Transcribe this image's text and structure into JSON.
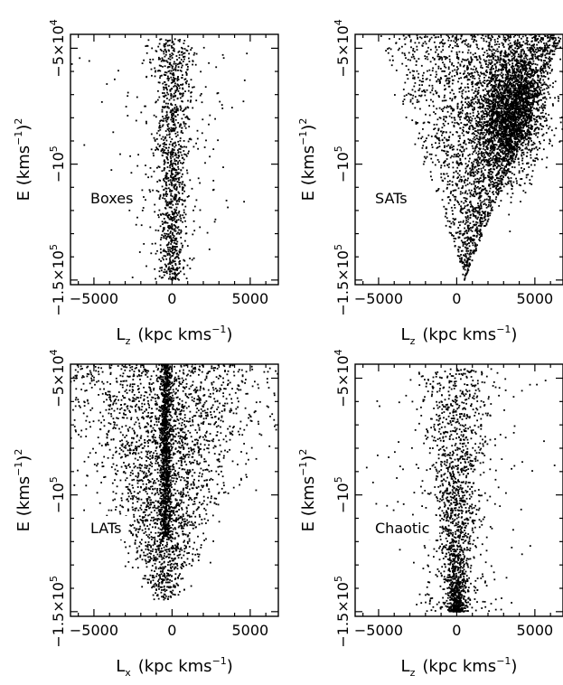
{
  "chart_data": [
    {
      "type": "scatter",
      "panel_label": "Boxes",
      "xlabel": {
        "sym": "L",
        "sub": "z",
        "unit": "(kpc kms",
        "exp": "−1",
        "close": ")"
      },
      "ylabel": {
        "text": "E (kms",
        "exp1": "−1",
        "close": ")",
        "exp2": "2"
      },
      "x_ticks": [
        {
          "value": -5000,
          "label": "−5000"
        },
        {
          "value": 0,
          "label": "0"
        },
        {
          "value": 5000,
          "label": "5000"
        }
      ],
      "y_ticks": [
        {
          "value": -50000,
          "label": "−5×10",
          "exp": "4"
        },
        {
          "value": -100000,
          "label": "−10",
          "exp": "5"
        },
        {
          "value": -150000,
          "label": "−1.5×10",
          "exp": "5"
        }
      ],
      "xlim": [
        -6500,
        6800
      ],
      "ylim": [
        -152000,
        -44000
      ],
      "cloud": {
        "n": 1300,
        "seed": 11,
        "shape": "column",
        "x_center": 0,
        "x_spread_top": 700,
        "x_spread_bottom": 280,
        "wide_fraction": 0.22,
        "wide_spread": 2200,
        "y_top": -46000,
        "y_bottom": -150000,
        "density_bias": 0.0
      }
    },
    {
      "type": "scatter",
      "panel_label": "SATs",
      "xlabel": {
        "sym": "L",
        "sub": "z",
        "unit": "(kpc kms",
        "exp": "−1",
        "close": ")"
      },
      "ylabel": {
        "text": "E (kms",
        "exp1": "−1",
        "close": ")",
        "exp2": "2"
      },
      "x_ticks": [
        {
          "value": -5000,
          "label": "−5000"
        },
        {
          "value": 0,
          "label": "0"
        },
        {
          "value": 5000,
          "label": "5000"
        }
      ],
      "y_ticks": [
        {
          "value": -50000,
          "label": "−5×10",
          "exp": "4"
        },
        {
          "value": -100000,
          "label": "−10",
          "exp": "5"
        },
        {
          "value": -150000,
          "label": "−1.5×10",
          "exp": "5"
        }
      ],
      "xlim": [
        -6500,
        6800
      ],
      "ylim": [
        -152000,
        -44000
      ],
      "cloud": {
        "n": 5200,
        "seed": 23,
        "shape": "wedge",
        "apex_x": 500,
        "apex_y": -150000,
        "left_x_top": -6500,
        "right_x_top": 6800,
        "dense_x": 3600,
        "dense_y": -78000,
        "dense_fraction": 0.45,
        "y_top": -44000,
        "y_bottom": -150000
      }
    },
    {
      "type": "scatter",
      "panel_label": "LATs",
      "xlabel": {
        "sym": "L",
        "sub": "x",
        "unit": "(kpc kms",
        "exp": "−1",
        "close": ")"
      },
      "ylabel": {
        "text": "E (kms",
        "exp1": "−1",
        "close": ")",
        "exp2": "2"
      },
      "x_ticks": [
        {
          "value": -5000,
          "label": "−5000"
        },
        {
          "value": 0,
          "label": "0"
        },
        {
          "value": 5000,
          "label": "5000"
        }
      ],
      "y_ticks": [
        {
          "value": -50000,
          "label": "−5×10",
          "exp": "4"
        },
        {
          "value": -100000,
          "label": "−10",
          "exp": "5"
        },
        {
          "value": -150000,
          "label": "−1.5×10",
          "exp": "5"
        }
      ],
      "xlim": [
        -6500,
        6800
      ],
      "ylim": [
        -152000,
        -44000
      ],
      "cloud": {
        "n": 3600,
        "seed": 37,
        "shape": "vee",
        "x_center": -400,
        "spine_fraction": 0.28,
        "spine_spread": 180,
        "y_top": -44000,
        "y_bottom": -145000,
        "left_bias": 1.4
      }
    },
    {
      "type": "scatter",
      "panel_label": "Chaotic",
      "xlabel": {
        "sym": "L",
        "sub": "z",
        "unit": "(kpc kms",
        "exp": "−1",
        "close": ")"
      },
      "ylabel": {
        "text": "E (kms",
        "exp1": "−1",
        "close": ")",
        "exp2": "2"
      },
      "x_ticks": [
        {
          "value": -5000,
          "label": "−5000"
        },
        {
          "value": 0,
          "label": "0"
        },
        {
          "value": 5000,
          "label": "5000"
        }
      ],
      "y_ticks": [
        {
          "value": -50000,
          "label": "−5×10",
          "exp": "4"
        },
        {
          "value": -100000,
          "label": "−10",
          "exp": "5"
        },
        {
          "value": -150000,
          "label": "−1.5×10",
          "exp": "5"
        }
      ],
      "xlim": [
        -6500,
        6800
      ],
      "ylim": [
        -152000,
        -44000
      ],
      "cloud": {
        "n": 1900,
        "seed": 53,
        "shape": "column",
        "x_center": 0,
        "x_spread_top": 1300,
        "x_spread_bottom": 220,
        "wide_fraction": 0.2,
        "wide_spread": 2800,
        "y_top": -46000,
        "y_bottom": -150000,
        "density_bias": 0.5
      }
    }
  ]
}
